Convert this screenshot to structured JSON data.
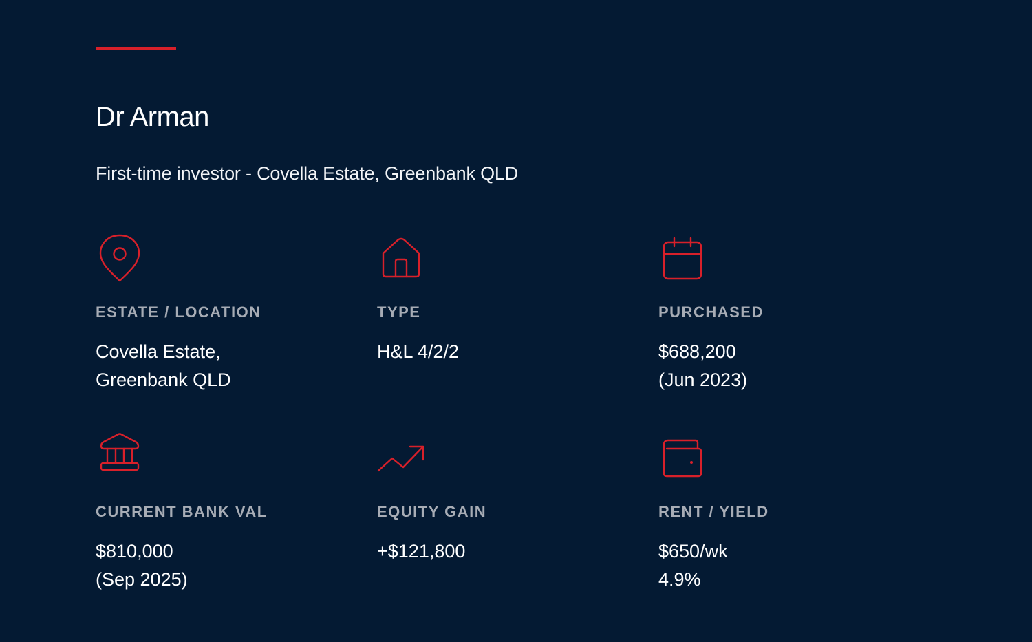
{
  "header": {
    "name": "Dr Arman",
    "subtitle": "First-time investor - Covella Estate, Greenbank QLD"
  },
  "colors": {
    "background": "#041a33",
    "accent": "#d8202a",
    "label": "#a7acb5",
    "text": "#ffffff"
  },
  "stats": [
    {
      "icon": "map-pin-icon",
      "label": "ESTATE / LOCATION",
      "value_line1": "Covella Estate,",
      "value_line2": "Greenbank QLD"
    },
    {
      "icon": "house-icon",
      "label": "TYPE",
      "value_line1": "H&L 4/2/2",
      "value_line2": ""
    },
    {
      "icon": "calendar-icon",
      "label": "PURCHASED",
      "value_line1": "$688,200",
      "value_line2": "(Jun 2023)"
    },
    {
      "icon": "bank-icon",
      "label": "CURRENT BANK VAL",
      "value_line1": "$810,000",
      "value_line2": "(Sep 2025)"
    },
    {
      "icon": "trending-up-icon",
      "label": "EQUITY GAIN",
      "value_line1": "+$121,800",
      "value_line2": ""
    },
    {
      "icon": "wallet-icon",
      "label": "RENT / YIELD",
      "value_line1": "$650/wk",
      "value_line2": "4.9%"
    }
  ]
}
